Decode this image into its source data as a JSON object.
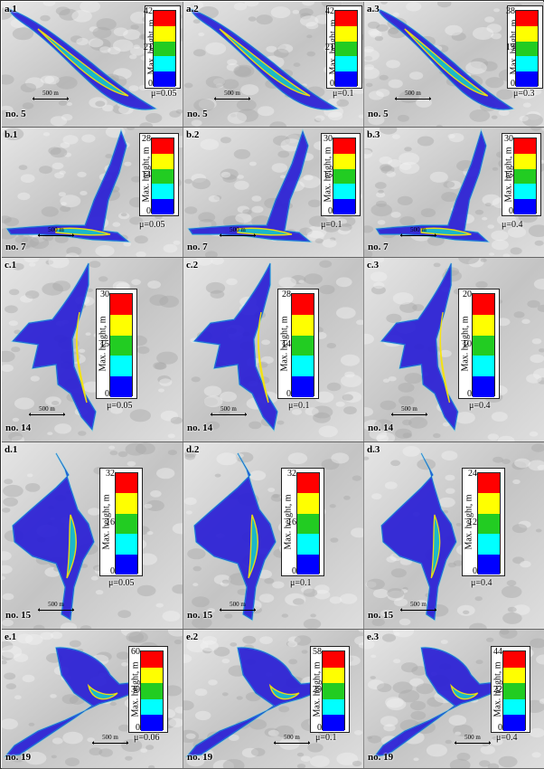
{
  "legend_title": "Max. height, m",
  "scale_label": "500 m",
  "legend_colors": [
    "#ff0000",
    "#ffff00",
    "#22cc22",
    "#00ffff",
    "#0000ff"
  ],
  "rows": [
    {
      "name": "row-a",
      "case": "no. 5",
      "panels": [
        {
          "tag": "a.1",
          "max": "42",
          "mid": "21",
          "min": "0",
          "mu": "μ=0.05"
        },
        {
          "tag": "a.2",
          "max": "42",
          "mid": "21",
          "min": "0",
          "mu": "μ=0.1"
        },
        {
          "tag": "a.3",
          "max": "38",
          "mid": "19",
          "min": "0",
          "mu": "μ=0.3"
        }
      ]
    },
    {
      "name": "row-b",
      "case": "no. 7",
      "panels": [
        {
          "tag": "b.1",
          "max": "28",
          "mid": "14",
          "min": "0",
          "mu": "μ=0.05"
        },
        {
          "tag": "b.2",
          "max": "30",
          "mid": "15",
          "min": "0",
          "mu": "μ=0.1"
        },
        {
          "tag": "b.3",
          "max": "30",
          "mid": "15",
          "min": "0",
          "mu": "μ=0.4"
        }
      ]
    },
    {
      "name": "row-c",
      "case": "no. 14",
      "panels": [
        {
          "tag": "c.1",
          "max": "30",
          "mid": "15",
          "min": "0",
          "mu": "μ=0.05"
        },
        {
          "tag": "c.2",
          "max": "28",
          "mid": "14",
          "min": "0",
          "mu": "μ=0.1"
        },
        {
          "tag": "c.3",
          "max": "20",
          "mid": "10",
          "min": "0",
          "mu": "μ=0.4"
        }
      ]
    },
    {
      "name": "row-d",
      "case": "no. 15",
      "panels": [
        {
          "tag": "d.1",
          "max": "32",
          "mid": "16",
          "min": "0",
          "mu": "μ=0.05"
        },
        {
          "tag": "d.2",
          "max": "32",
          "mid": "16",
          "min": "0",
          "mu": "μ=0.1"
        },
        {
          "tag": "d.3",
          "max": "24",
          "mid": "12",
          "min": "0",
          "mu": "μ=0.4"
        }
      ]
    },
    {
      "name": "row-e",
      "case": "no. 19",
      "panels": [
        {
          "tag": "e.1",
          "max": "60",
          "mid": "30",
          "min": "0",
          "mu": "μ=0.06"
        },
        {
          "tag": "e.2",
          "max": "58",
          "mid": "29",
          "min": "0",
          "mu": "μ=0.1"
        },
        {
          "tag": "e.3",
          "max": "44",
          "mid": "22",
          "min": "0",
          "mu": "μ=0.4"
        }
      ]
    }
  ]
}
